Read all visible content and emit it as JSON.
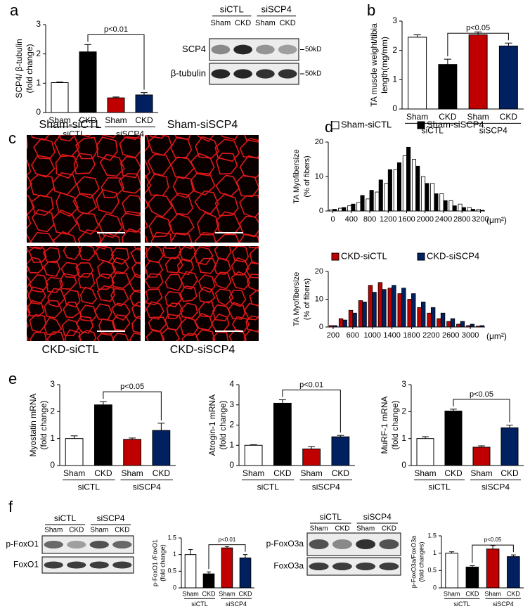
{
  "panel_labels": [
    "a",
    "b",
    "c",
    "d",
    "e",
    "f"
  ],
  "blot_a": {
    "groups": [
      "siCTL",
      "siSCP4"
    ],
    "lanes": [
      "Sham",
      "CKD",
      "Sham",
      "CKD"
    ],
    "rows": [
      "SCP4",
      "β-tubulin"
    ],
    "markers": [
      "50kD",
      "50kD"
    ]
  },
  "images": [
    "Sham-siCTL",
    "Sham-siSCP4",
    "CKD-siCTL",
    "CKD-siSCP4"
  ],
  "blot_f1": {
    "groups": [
      "siCTL",
      "siSCP4"
    ],
    "lanes": [
      "Sham",
      "CKD",
      "Sham",
      "CKD"
    ],
    "rows": [
      "p-FoxO1",
      "FoxO1"
    ]
  },
  "blot_f2": {
    "groups": [
      "siCTL",
      "siSCP4"
    ],
    "lanes": [
      "Sham",
      "CKD",
      "Sham",
      "CKD"
    ],
    "rows": [
      "p-FoxO3a",
      "FoxO3a"
    ]
  },
  "chart_data": [
    {
      "type": "bar",
      "ylabel": [
        "SCP4/ β-tubulin",
        "(fold  change)"
      ],
      "categories": [
        "Sham",
        "CKD",
        "Sham",
        "CKD"
      ],
      "groups": [
        "siCTL",
        "siSCP4"
      ],
      "values": [
        1.02,
        2.07,
        0.5,
        0.6
      ],
      "errors": [
        0.02,
        0.25,
        0.03,
        0.08
      ],
      "colors": [
        "#ffffff",
        "#000000",
        "#c00000",
        "#002060"
      ],
      "ylim": [
        0,
        3
      ],
      "yticks": [
        0,
        1,
        2,
        3
      ],
      "annotation": "p<0.01"
    },
    {
      "type": "bar",
      "ylabel": [
        "TA muscle weight/tibia",
        "length(mg/mm)"
      ],
      "categories": [
        "Sham",
        "CKD",
        "Sham",
        "CKD"
      ],
      "groups": [
        "siCTL",
        "siSCP4"
      ],
      "values": [
        2.45,
        1.52,
        2.53,
        2.15
      ],
      "errors": [
        0.08,
        0.18,
        0.1,
        0.1
      ],
      "colors": [
        "#ffffff",
        "#000000",
        "#c00000",
        "#002060"
      ],
      "ylim": [
        0,
        3
      ],
      "yticks": [
        0,
        1,
        2,
        3
      ],
      "annotation": "p<0.05"
    },
    {
      "type": "histogram",
      "ylabel": [
        "TA Myofibersize",
        "(% of fibers)"
      ],
      "xlabel": "(μm²)",
      "categories": [
        "0",
        null,
        "400",
        null,
        "800",
        null,
        "1200",
        null,
        "1600",
        null,
        "2000",
        null,
        "2400",
        null,
        "2800",
        null,
        "3200"
      ],
      "series": [
        {
          "name": "Sham-siCTL",
          "color": "#ffffff",
          "values": [
            0.3,
            0.8,
            1.5,
            2.5,
            3.5,
            5.5,
            8,
            12,
            16,
            15,
            10,
            8,
            5,
            3,
            2,
            1,
            0.5
          ]
        },
        {
          "name": "Sham-siSCP4",
          "color": "#000000",
          "values": [
            0.5,
            1,
            2,
            4.5,
            6,
            9,
            12,
            14,
            18.5,
            13,
            8,
            5,
            3,
            1.5,
            1,
            0.5,
            0.2
          ]
        }
      ],
      "ylim": [
        0,
        20
      ],
      "yticks": [
        0,
        10,
        20
      ]
    },
    {
      "type": "histogram",
      "ylabel": [
        "TA Myofibersize",
        "(% of fibers)"
      ],
      "xlabel": "(μm²)",
      "categories": [
        "200",
        null,
        "600",
        null,
        "1000",
        null,
        "1400",
        null,
        "1800",
        null,
        "2200",
        null,
        "2600",
        null,
        "3000",
        null
      ],
      "series": [
        {
          "name": "CKD-siCTL",
          "color": "#c00000",
          "values": [
            0.5,
            3,
            6,
            9.5,
            15,
            16,
            14,
            12,
            10,
            7,
            5,
            3,
            2,
            1,
            0.5,
            0.3
          ]
        },
        {
          "name": "CKD-siSCP4",
          "color": "#002060",
          "values": [
            0.5,
            2.5,
            5,
            9,
            12.5,
            13.5,
            15,
            14,
            12,
            9,
            7,
            5,
            3,
            2,
            1,
            0.5
          ]
        }
      ],
      "ylim": [
        0,
        20
      ],
      "yticks": [
        0,
        10,
        20
      ]
    },
    {
      "type": "bar",
      "ylabel": [
        "Myostatin mRNA",
        "(fold change)"
      ],
      "categories": [
        "Sham",
        "CKD",
        "Sham",
        "CKD"
      ],
      "groups": [
        "siCTL",
        "siSCP4"
      ],
      "values": [
        1.0,
        2.25,
        0.97,
        1.3
      ],
      "errors": [
        0.1,
        0.12,
        0.05,
        0.27
      ],
      "colors": [
        "#ffffff",
        "#000000",
        "#c00000",
        "#002060"
      ],
      "ylim": [
        0,
        3
      ],
      "yticks": [
        0,
        1,
        2,
        3
      ],
      "annotation": "p<0.05"
    },
    {
      "type": "bar",
      "ylabel": [
        "Atrogin-1 mRNA",
        "(fold change)"
      ],
      "categories": [
        "Sham",
        "CKD",
        "Sham",
        "CKD"
      ],
      "groups": [
        "siCTL",
        "siSCP4"
      ],
      "values": [
        1.0,
        3.08,
        0.82,
        1.42
      ],
      "errors": [
        0.03,
        0.17,
        0.12,
        0.07
      ],
      "colors": [
        "#ffffff",
        "#000000",
        "#c00000",
        "#002060"
      ],
      "ylim": [
        0,
        4
      ],
      "yticks": [
        0,
        1,
        2,
        3,
        4
      ],
      "annotation": "p<0.01"
    },
    {
      "type": "bar",
      "ylabel": [
        "MuRF-1 mRNA",
        "(fold change)"
      ],
      "categories": [
        "Sham",
        "CKD",
        "Sham",
        "CKD"
      ],
      "groups": [
        "siCTL",
        "siSCP4"
      ],
      "values": [
        1.0,
        2.02,
        0.68,
        1.4
      ],
      "errors": [
        0.07,
        0.07,
        0.05,
        0.1
      ],
      "colors": [
        "#ffffff",
        "#000000",
        "#c00000",
        "#002060"
      ],
      "ylim": [
        0,
        3
      ],
      "yticks": [
        0,
        1,
        2,
        3
      ],
      "annotation": "p<0.05"
    },
    {
      "type": "bar",
      "ylabel": [
        "p-FoxO1 /FoxO1",
        "(fold change)"
      ],
      "categories": [
        "Sham",
        "CKD",
        "Sham",
        "CKD"
      ],
      "groups": [
        "siCTL",
        "siSCP4"
      ],
      "values": [
        1.0,
        0.42,
        1.2,
        0.9
      ],
      "errors": [
        0.15,
        0.06,
        0.04,
        0.1
      ],
      "colors": [
        "#ffffff",
        "#000000",
        "#c00000",
        "#002060"
      ],
      "ylim": [
        0,
        1.5
      ],
      "yticks": [
        0,
        0.5,
        1,
        1.5
      ],
      "annotation": "p<0.01"
    },
    {
      "type": "bar",
      "ylabel": [
        "p-FoxO3a/FoxO3a",
        "(fold changes)"
      ],
      "categories": [
        "Sham",
        "CKD",
        "Sham",
        "CKD"
      ],
      "groups": [
        "siCTL",
        "siSCP4"
      ],
      "values": [
        1.0,
        0.6,
        1.12,
        0.9
      ],
      "errors": [
        0.04,
        0.04,
        0.1,
        0.05
      ],
      "colors": [
        "#ffffff",
        "#000000",
        "#c00000",
        "#002060"
      ],
      "ylim": [
        0,
        1.5
      ],
      "yticks": [
        0,
        0.5,
        1,
        1.5
      ],
      "annotation": "p<0.05"
    }
  ]
}
